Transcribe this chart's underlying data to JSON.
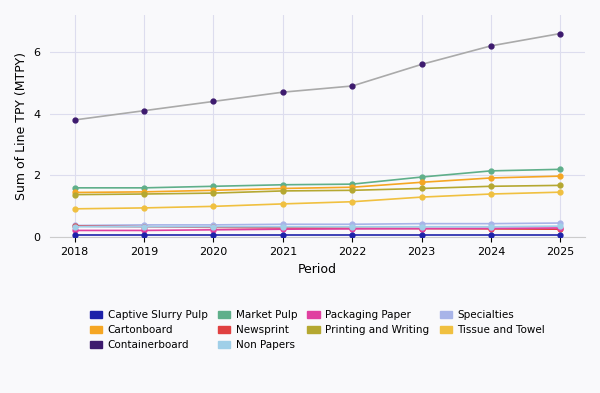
{
  "years": [
    2018,
    2019,
    2020,
    2021,
    2022,
    2023,
    2024,
    2025
  ],
  "series": {
    "Containerboard": {
      "values": [
        3.8,
        4.1,
        4.4,
        4.7,
        4.9,
        5.6,
        6.2,
        6.6
      ],
      "color": "#3d1a6e",
      "line_color": "#aaaaaa"
    },
    "Market Pulp": {
      "values": [
        1.6,
        1.6,
        1.65,
        1.7,
        1.72,
        1.95,
        2.15,
        2.2
      ],
      "color": "#5faf8a",
      "line_color": "#5faf8a"
    },
    "Cartonboard": {
      "values": [
        1.45,
        1.47,
        1.52,
        1.58,
        1.62,
        1.78,
        1.92,
        1.98
      ],
      "color": "#f5a623",
      "line_color": "#f5a623"
    },
    "Printing and Writing": {
      "values": [
        1.38,
        1.4,
        1.43,
        1.5,
        1.52,
        1.58,
        1.65,
        1.68
      ],
      "color": "#b5a831",
      "line_color": "#b5a831"
    },
    "Tissue and Towel": {
      "values": [
        0.92,
        0.95,
        1.0,
        1.08,
        1.15,
        1.3,
        1.4,
        1.46
      ],
      "color": "#f0c040",
      "line_color": "#f0c040"
    },
    "Specialties": {
      "values": [
        0.38,
        0.4,
        0.4,
        0.42,
        0.42,
        0.44,
        0.44,
        0.46
      ],
      "color": "#a8b4e8",
      "line_color": "#a8b4e8"
    },
    "Newsprint": {
      "values": [
        0.36,
        0.34,
        0.32,
        0.3,
        0.29,
        0.28,
        0.27,
        0.26
      ],
      "color": "#e04040",
      "line_color": "#e04040"
    },
    "Packaging Paper": {
      "values": [
        0.22,
        0.22,
        0.24,
        0.26,
        0.27,
        0.28,
        0.29,
        0.3
      ],
      "color": "#e040a0",
      "line_color": "#e040a0"
    },
    "Non Papers": {
      "values": [
        0.34,
        0.34,
        0.34,
        0.34,
        0.34,
        0.34,
        0.34,
        0.36
      ],
      "color": "#a0cfe8",
      "line_color": "#a0cfe8"
    },
    "Captive Slurry Pulp": {
      "values": [
        0.06,
        0.06,
        0.06,
        0.06,
        0.06,
        0.06,
        0.06,
        0.06
      ],
      "color": "#1e22aa",
      "line_color": "#1e22aa"
    }
  },
  "xlabel": "Period",
  "ylabel": "Sum of Line TPY (MTPY)",
  "ylim": [
    0,
    7.2
  ],
  "yticks": [
    0,
    2,
    4,
    6
  ],
  "background_color": "#f9f9fb",
  "grid_color": "#ddddee",
  "axis_fontsize": 9,
  "tick_fontsize": 8,
  "legend_fontsize": 7.5,
  "legend_items": [
    [
      "Captive Slurry Pulp",
      "#1e22aa"
    ],
    [
      "Cartonboard",
      "#f5a623"
    ],
    [
      "Containerboard",
      "#3d1a6e"
    ],
    [
      "Market Pulp",
      "#5faf8a"
    ],
    [
      "Newsprint",
      "#e04040"
    ],
    [
      "Non Papers",
      "#a0cfe8"
    ],
    [
      "Packaging Paper",
      "#e040a0"
    ],
    [
      "Printing and Writing",
      "#b5a831"
    ],
    [
      "Specialties",
      "#a8b4e8"
    ],
    [
      "Tissue and Towel",
      "#f0c040"
    ]
  ]
}
